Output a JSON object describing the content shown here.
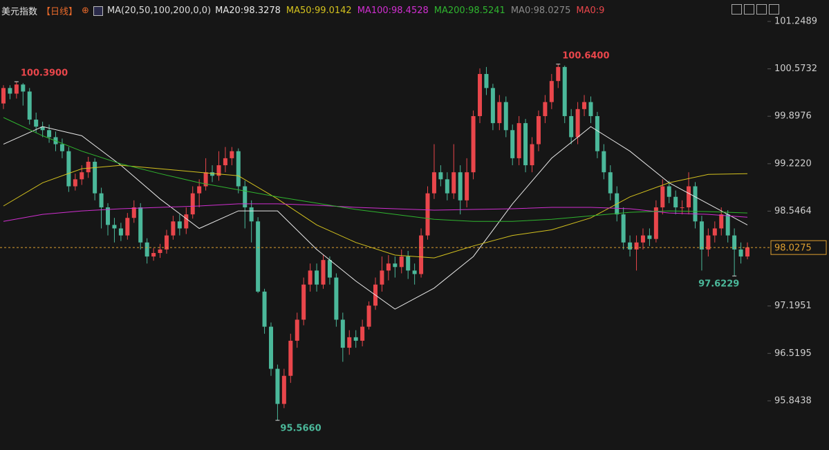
{
  "chart_data": {
    "type": "candlestick",
    "title": "美元指数",
    "period": "【日线】",
    "indicator": "MA(20,50,100,200,0,0)",
    "open": [
      100.08,
      100.3,
      100.22,
      100.35,
      100.25,
      99.85,
      99.75,
      99.7,
      99.6,
      99.5,
      99.4,
      98.9,
      99.0,
      99.1,
      99.25,
      98.8,
      98.6,
      98.35,
      98.3,
      98.2,
      98.45,
      98.6,
      98.1,
      97.9,
      97.95,
      98.0,
      98.2,
      98.4,
      98.3,
      98.5,
      98.8,
      98.9,
      99.1,
      99.05,
      99.2,
      99.3,
      99.4,
      98.9,
      98.6,
      98.4,
      97.4,
      96.9,
      96.3,
      95.8,
      96.2,
      96.7,
      97.0,
      97.5,
      97.7,
      97.5,
      97.85,
      97.6,
      97.0,
      96.6,
      96.75,
      96.7,
      96.9,
      97.2,
      97.5,
      97.7,
      97.8,
      97.75,
      97.9,
      97.7,
      97.65,
      98.2,
      98.8,
      99.1,
      99.0,
      98.8,
      99.1,
      98.7,
      99.1,
      99.9,
      100.5,
      100.3,
      99.8,
      100.1,
      99.7,
      99.3,
      99.8,
      99.2,
      99.5,
      99.9,
      100.1,
      100.4,
      100.6,
      99.9,
      99.6,
      100.0,
      100.1,
      99.9,
      99.4,
      99.1,
      98.8,
      98.5,
      98.1,
      98.0,
      98.1,
      98.2,
      98.15,
      98.6,
      98.9,
      98.75,
      98.6,
      98.6,
      98.9,
      98.4,
      98.0,
      98.2,
      98.3,
      98.5,
      98.2,
      98.0,
      97.9
    ],
    "high": [
      100.34,
      100.34,
      100.39,
      100.37,
      100.3,
      99.95,
      99.82,
      99.78,
      99.68,
      99.58,
      99.46,
      99.08,
      99.2,
      99.32,
      99.3,
      98.88,
      98.66,
      98.45,
      98.38,
      98.52,
      98.7,
      98.66,
      98.16,
      98.02,
      98.08,
      98.28,
      98.48,
      98.5,
      98.6,
      98.9,
      99.0,
      99.3,
      99.2,
      99.4,
      99.46,
      99.46,
      99.44,
      98.98,
      98.7,
      98.46,
      97.44,
      96.96,
      96.36,
      96.3,
      96.8,
      97.1,
      97.6,
      97.8,
      97.8,
      97.92,
      97.9,
      97.66,
      97.1,
      96.85,
      96.85,
      97.0,
      97.26,
      97.6,
      97.9,
      97.92,
      97.9,
      98.0,
      97.98,
      97.8,
      98.3,
      98.9,
      99.5,
      99.2,
      99.1,
      99.5,
      99.2,
      99.3,
      99.98,
      100.58,
      100.6,
      100.36,
      100.2,
      100.18,
      99.78,
      99.9,
      99.86,
      99.6,
      99.98,
      100.2,
      100.5,
      100.64,
      100.62,
      100.0,
      100.1,
      100.2,
      100.18,
      99.96,
      99.5,
      99.2,
      98.9,
      98.6,
      98.2,
      98.2,
      98.3,
      98.3,
      98.7,
      99.0,
      98.98,
      98.84,
      98.7,
      99.1,
      98.96,
      98.48,
      98.3,
      98.4,
      98.6,
      98.56,
      98.3,
      98.1,
      98.1
    ],
    "low": [
      100.0,
      100.14,
      100.15,
      100.05,
      99.78,
      99.66,
      99.6,
      99.52,
      99.4,
      99.3,
      98.82,
      98.84,
      98.92,
      99.02,
      98.7,
      98.3,
      98.2,
      98.1,
      98.12,
      98.14,
      98.38,
      98.0,
      97.8,
      97.84,
      97.88,
      97.94,
      98.14,
      98.2,
      98.22,
      98.44,
      98.6,
      98.84,
      98.96,
      98.98,
      99.1,
      99.2,
      98.8,
      98.3,
      98.1,
      97.38,
      96.8,
      96.2,
      95.566,
      95.74,
      96.1,
      96.6,
      96.92,
      97.4,
      97.4,
      97.44,
      97.5,
      96.9,
      96.4,
      96.5,
      96.6,
      96.62,
      96.86,
      97.14,
      97.4,
      97.56,
      97.6,
      97.66,
      97.58,
      97.5,
      97.6,
      98.14,
      98.72,
      98.9,
      98.7,
      98.72,
      98.5,
      98.6,
      99.0,
      99.8,
      100.2,
      99.7,
      99.7,
      99.6,
      99.2,
      99.2,
      99.1,
      99.1,
      99.4,
      99.8,
      100.0,
      100.3,
      99.8,
      99.5,
      99.5,
      99.9,
      99.8,
      99.3,
      99.0,
      98.7,
      98.4,
      98.0,
      97.9,
      97.7,
      98.0,
      98.05,
      98.1,
      98.5,
      98.66,
      98.5,
      98.5,
      98.5,
      98.3,
      97.7,
      97.9,
      98.1,
      98.2,
      98.1,
      97.6229,
      97.8,
      97.86
    ],
    "close": [
      100.3,
      100.22,
      100.35,
      100.25,
      99.85,
      99.75,
      99.7,
      99.6,
      99.5,
      99.4,
      98.9,
      99.0,
      99.1,
      99.25,
      98.8,
      98.6,
      98.35,
      98.3,
      98.2,
      98.45,
      98.6,
      98.1,
      97.9,
      97.95,
      98.0,
      98.2,
      98.4,
      98.3,
      98.5,
      98.8,
      98.9,
      99.1,
      99.05,
      99.2,
      99.3,
      99.4,
      98.9,
      98.6,
      98.4,
      97.4,
      96.9,
      96.3,
      95.8,
      96.2,
      96.7,
      97.0,
      97.5,
      97.7,
      97.5,
      97.85,
      97.6,
      97.0,
      96.6,
      96.75,
      96.7,
      96.9,
      97.2,
      97.5,
      97.7,
      97.8,
      97.75,
      97.9,
      97.7,
      97.65,
      98.2,
      98.8,
      99.1,
      99.0,
      98.8,
      99.1,
      98.7,
      99.1,
      99.9,
      100.5,
      100.3,
      99.8,
      100.1,
      99.7,
      99.3,
      99.8,
      99.2,
      99.5,
      99.9,
      100.1,
      100.4,
      100.6,
      99.9,
      99.6,
      100.0,
      100.1,
      99.9,
      99.4,
      99.1,
      98.8,
      98.5,
      98.1,
      98.0,
      98.1,
      98.2,
      98.15,
      98.6,
      98.9,
      98.75,
      98.6,
      98.6,
      98.9,
      98.4,
      98.0,
      98.2,
      98.3,
      98.5,
      98.2,
      98.0,
      97.9,
      98.03
    ],
    "up_color": "#e9464b",
    "down_color": "#4bb89a",
    "series": [
      {
        "name": "MA20",
        "legend_label": "MA20:98.3278",
        "color": "#e8e8e8",
        "x": [
          0,
          6,
          12,
          18,
          24,
          30,
          36,
          42,
          48,
          54,
          60,
          66,
          72,
          78,
          84,
          90,
          96,
          102,
          108,
          114
        ],
        "values": [
          99.5,
          99.75,
          99.62,
          99.2,
          98.72,
          98.3,
          98.55,
          98.55,
          98.0,
          97.55,
          97.15,
          97.45,
          97.9,
          98.65,
          99.3,
          99.75,
          99.4,
          98.95,
          98.65,
          98.35
        ]
      },
      {
        "name": "MA50",
        "legend_label": "MA50:99.0142",
        "color": "#d4c21e",
        "x": [
          0,
          6,
          12,
          18,
          24,
          30,
          36,
          42,
          48,
          54,
          60,
          66,
          72,
          78,
          84,
          90,
          96,
          102,
          108,
          114
        ],
        "values": [
          98.62,
          98.95,
          99.15,
          99.2,
          99.15,
          99.1,
          99.05,
          98.72,
          98.35,
          98.1,
          97.92,
          97.88,
          98.05,
          98.2,
          98.28,
          98.45,
          98.75,
          98.95,
          99.07,
          99.08
        ]
      },
      {
        "name": "MA100",
        "legend_label": "MA100:98.4528",
        "color": "#d12fd1",
        "x": [
          0,
          6,
          12,
          18,
          24,
          30,
          36,
          42,
          48,
          54,
          60,
          66,
          72,
          78,
          84,
          90,
          96,
          102,
          108,
          114
        ],
        "values": [
          98.4,
          98.5,
          98.55,
          98.58,
          98.6,
          98.62,
          98.65,
          98.65,
          98.63,
          98.6,
          98.58,
          98.56,
          98.57,
          98.58,
          98.6,
          98.6,
          98.58,
          98.52,
          98.5,
          98.46
        ]
      },
      {
        "name": "MA200",
        "legend_label": "MA200:98.5241",
        "color": "#2fb52f",
        "x": [
          0,
          6,
          12,
          18,
          24,
          30,
          36,
          42,
          48,
          54,
          60,
          66,
          72,
          78,
          84,
          90,
          96,
          102,
          108,
          114
        ],
        "values": [
          99.88,
          99.62,
          99.4,
          99.22,
          99.08,
          98.95,
          98.85,
          98.75,
          98.66,
          98.57,
          98.5,
          98.43,
          98.4,
          98.4,
          98.43,
          98.48,
          98.53,
          98.55,
          98.54,
          98.52
        ]
      }
    ],
    "extra_legend": [
      {
        "label": "MA0:98.0275",
        "color": "#8a8a8a"
      },
      {
        "label": "MA0:9",
        "color": "#e9464b"
      }
    ],
    "annotations": [
      {
        "kind": "high",
        "value": 100.39,
        "label": "100.3900",
        "color": "#e9464b"
      },
      {
        "kind": "high",
        "value": 100.64,
        "label": "100.6400",
        "color": "#e9464b"
      },
      {
        "kind": "low",
        "value": 95.566,
        "label": "95.5660",
        "color": "#4bb89a"
      },
      {
        "kind": "low",
        "value": 97.6229,
        "label": "97.6229",
        "color": "#4bb89a"
      }
    ],
    "last_price": {
      "value": 98.0275,
      "label": "98.0275",
      "color": "#e0a030"
    },
    "ylim": [
      95.1435,
      101.554
    ],
    "yticks": [
      101.2489,
      {
        "value": 100.5732,
        "label": "100.5732"
      },
      {
        "value": 99.8976,
        "label": "99.8976"
      },
      {
        "value": 99.222,
        "label": "99.2220"
      },
      {
        "value": 98.5464,
        "label": "98.5464"
      },
      {
        "value": 97.1951,
        "label": "97.1951"
      },
      {
        "value": 96.5195,
        "label": "96.5195"
      },
      {
        "value": 95.8438,
        "label": "95.8438"
      }
    ]
  }
}
